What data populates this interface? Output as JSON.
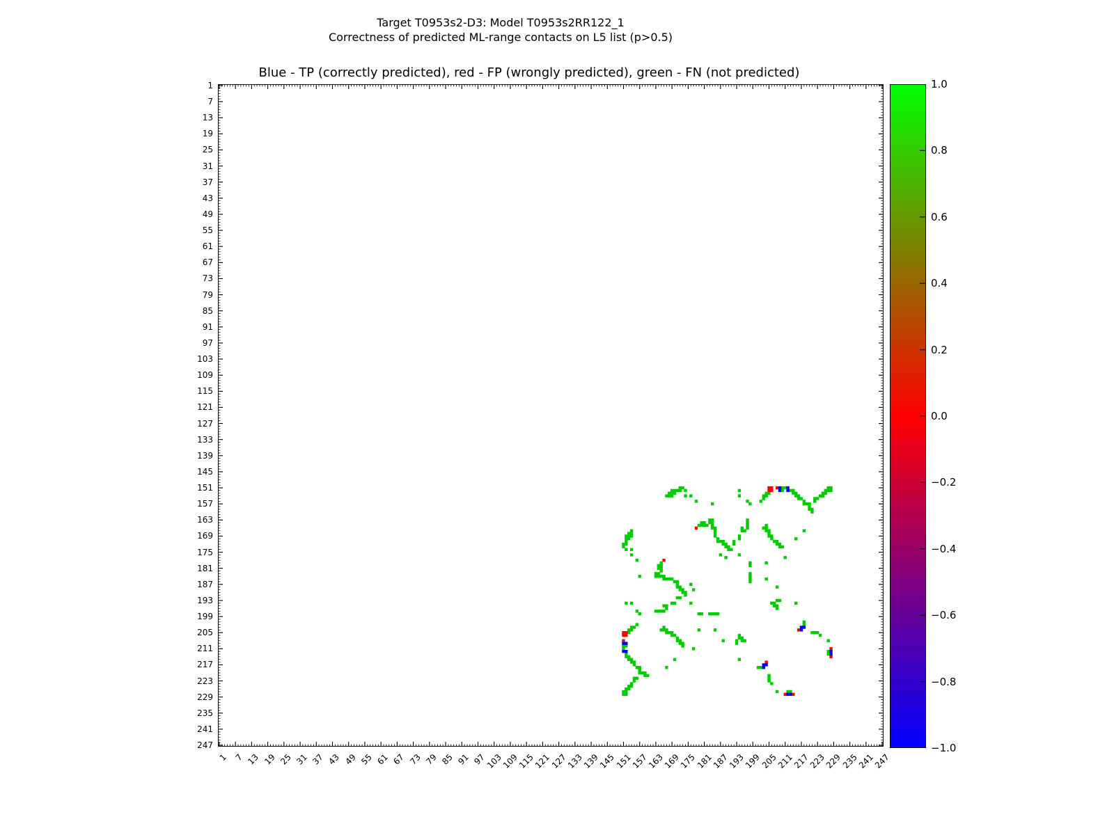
{
  "figure": {
    "title_line1": "Target T0953s2-D3: Model T0953s2RR122_1",
    "title_line2": "Correctness of predicted ML-range contacts on L5 list (p>0.5)",
    "axes_title": "Blue - TP (correctly predicted), red - FP (wrongly predicted), green - FN (not predicted)"
  },
  "axes": {
    "n_residues": 247,
    "x_tick_labels": [
      1,
      7,
      13,
      19,
      25,
      31,
      37,
      43,
      49,
      55,
      61,
      67,
      73,
      79,
      85,
      91,
      97,
      103,
      109,
      115,
      121,
      127,
      133,
      139,
      145,
      151,
      157,
      163,
      169,
      175,
      181,
      187,
      193,
      199,
      205,
      211,
      217,
      223,
      229,
      235,
      241,
      247
    ],
    "y_tick_labels": [
      1,
      7,
      13,
      19,
      25,
      31,
      37,
      43,
      49,
      55,
      61,
      67,
      73,
      79,
      85,
      91,
      97,
      103,
      109,
      115,
      121,
      127,
      133,
      139,
      145,
      151,
      157,
      163,
      169,
      175,
      181,
      187,
      193,
      199,
      205,
      211,
      217,
      223,
      229,
      235,
      241,
      247
    ]
  },
  "colorbar": {
    "tick_labels": [
      "1.0",
      "0.8",
      "0.6",
      "0.4",
      "0.2",
      "0.0",
      "−0.2",
      "−0.4",
      "−0.6",
      "−0.8",
      "−1.0"
    ],
    "gradient_top": "#00ff00",
    "gradient_mid": "#ff0000",
    "gradient_bottom": "#0000ff",
    "min": -1.0,
    "max": 1.0
  },
  "chart_data": {
    "type": "scatter",
    "title": "Blue - TP (correctly predicted), red - FP (wrongly predicted), green - FN (not predicted)",
    "xlabel": "",
    "ylabel": "",
    "x_range": [
      1,
      247
    ],
    "y_range": [
      1,
      247
    ],
    "y_axis_inverted": true,
    "grid": false,
    "marker": "square",
    "symmetric_about_diagonal": true,
    "colors": {
      "TP": "#0000ff",
      "FP": "#ff0000",
      "FN": "#00cc00"
    },
    "series": [
      {
        "name": "FN (not predicted)",
        "color": "#00cc00",
        "points_upper_triangle": [
          [
            151,
            172
          ],
          [
            151,
            173
          ],
          [
            152,
            169
          ],
          [
            152,
            170
          ],
          [
            152,
            171
          ],
          [
            152,
            172
          ],
          [
            153,
            168
          ],
          [
            153,
            169
          ],
          [
            153,
            170
          ],
          [
            154,
            167
          ],
          [
            154,
            168
          ],
          [
            154,
            169
          ],
          [
            152,
            174
          ],
          [
            154,
            174
          ],
          [
            154,
            176
          ],
          [
            156,
            178
          ],
          [
            157,
            184
          ],
          [
            152,
            194
          ],
          [
            154,
            194
          ],
          [
            156,
            197
          ],
          [
            157,
            198
          ],
          [
            165,
            179
          ],
          [
            165,
            180
          ],
          [
            164,
            180
          ],
          [
            164,
            181
          ],
          [
            165,
            181
          ],
          [
            165,
            182
          ],
          [
            163,
            183
          ],
          [
            164,
            183
          ],
          [
            163,
            184
          ],
          [
            164,
            184
          ],
          [
            165,
            184
          ],
          [
            166,
            184
          ],
          [
            166,
            185
          ],
          [
            167,
            185
          ],
          [
            168,
            185
          ],
          [
            169,
            185
          ],
          [
            170,
            186
          ],
          [
            171,
            186
          ],
          [
            171,
            187
          ],
          [
            171,
            188
          ],
          [
            172,
            188
          ],
          [
            172,
            189
          ],
          [
            173,
            189
          ],
          [
            173,
            190
          ],
          [
            174,
            190
          ],
          [
            174,
            191
          ],
          [
            172,
            192
          ],
          [
            171,
            192
          ],
          [
            170,
            194
          ],
          [
            169,
            194
          ],
          [
            167,
            195
          ],
          [
            166,
            195
          ],
          [
            167,
            196
          ],
          [
            165,
            197
          ],
          [
            166,
            197
          ],
          [
            164,
            197
          ],
          [
            163,
            197
          ],
          [
            176,
            187
          ],
          [
            177,
            189
          ],
          [
            176,
            194
          ],
          [
            179,
            198
          ],
          [
            180,
            198
          ],
          [
            183,
            198
          ],
          [
            184,
            198
          ],
          [
            185,
            198
          ],
          [
            186,
            198
          ],
          [
            165,
            204
          ],
          [
            166,
            203
          ],
          [
            166,
            204
          ],
          [
            167,
            204
          ],
          [
            167,
            205
          ],
          [
            168,
            205
          ],
          [
            169,
            205
          ],
          [
            169,
            206
          ],
          [
            170,
            206
          ],
          [
            171,
            207
          ],
          [
            171,
            208
          ],
          [
            172,
            208
          ],
          [
            172,
            209
          ],
          [
            173,
            209
          ],
          [
            173,
            210
          ],
          [
            170,
            215
          ],
          [
            167,
            218
          ],
          [
            177,
            211
          ],
          [
            179,
            204
          ],
          [
            185,
            204
          ],
          [
            188,
            208
          ],
          [
            194,
            215
          ],
          [
            193,
            208
          ],
          [
            193,
            209
          ],
          [
            194,
            206
          ],
          [
            194,
            207
          ],
          [
            195,
            207
          ],
          [
            195,
            208
          ],
          [
            196,
            208
          ],
          [
            153,
            204
          ],
          [
            153,
            205
          ],
          [
            154,
            203
          ],
          [
            154,
            204
          ],
          [
            155,
            203
          ],
          [
            156,
            202
          ],
          [
            151,
            210
          ],
          [
            151,
            211
          ],
          [
            152,
            210
          ],
          [
            152,
            213
          ],
          [
            152,
            214
          ],
          [
            153,
            214
          ],
          [
            153,
            215
          ],
          [
            154,
            215
          ],
          [
            154,
            216
          ],
          [
            155,
            216
          ],
          [
            155,
            217
          ],
          [
            156,
            218
          ],
          [
            157,
            218
          ],
          [
            157,
            219
          ],
          [
            157,
            220
          ],
          [
            158,
            220
          ],
          [
            159,
            220
          ],
          [
            159,
            221
          ],
          [
            160,
            221
          ],
          [
            156,
            222
          ],
          [
            155,
            222
          ],
          [
            155,
            223
          ],
          [
            154,
            224
          ],
          [
            154,
            225
          ],
          [
            153,
            225
          ],
          [
            153,
            226
          ],
          [
            152,
            226
          ],
          [
            152,
            227
          ],
          [
            151,
            227
          ],
          [
            151,
            228
          ],
          [
            152,
            228
          ],
          [
            201,
            218
          ],
          [
            202,
            218
          ],
          [
            205,
            221
          ],
          [
            205,
            222
          ],
          [
            205,
            223
          ],
          [
            206,
            224
          ],
          [
            208,
            227
          ],
          [
            212,
            227
          ],
          [
            213,
            227
          ]
        ]
      },
      {
        "name": "FP (wrongly predicted)",
        "color": "#ff0000",
        "points_upper_triangle": [
          [
            166,
            178
          ],
          [
            151,
            205
          ],
          [
            151,
            206
          ],
          [
            152,
            205
          ],
          [
            152,
            206
          ],
          [
            151,
            208
          ],
          [
            204,
            216
          ],
          [
            211,
            228
          ],
          [
            214,
            228
          ]
        ]
      },
      {
        "name": "TP (correctly predicted)",
        "color": "#0000ff",
        "points_upper_triangle": [
          [
            151,
            209
          ],
          [
            152,
            209
          ],
          [
            151,
            212
          ],
          [
            152,
            212
          ],
          [
            203,
            217
          ],
          [
            204,
            217
          ],
          [
            203,
            218
          ],
          [
            212,
            228
          ],
          [
            213,
            228
          ]
        ]
      }
    ]
  }
}
